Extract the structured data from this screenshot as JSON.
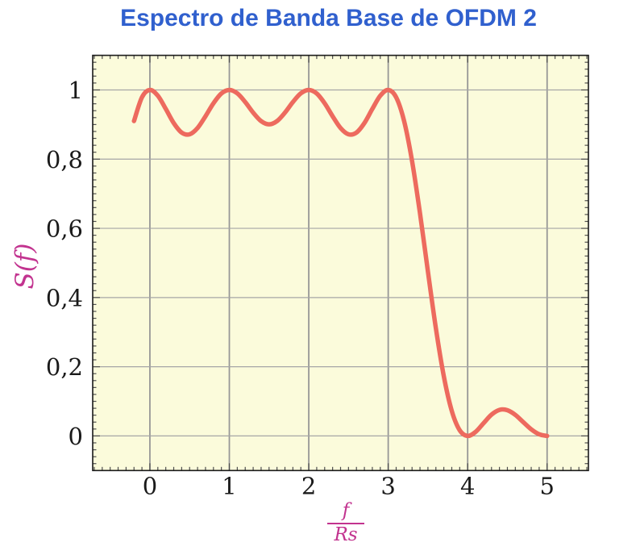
{
  "colors": {
    "title": "#3060CE",
    "axis_label": "#C2338F",
    "curve": "#ED6A5E",
    "plot_background": "#FBFBDB",
    "grid_vertical": "#979797",
    "grid_horizontal": "#A6A6A6",
    "frame": "#1A1A1A",
    "tick": "#4D4D4D",
    "tick_label": "#1A1A1A",
    "page_background": "#FFFFFF"
  },
  "chart_data": {
    "type": "line",
    "title": "Espectro de Banda Base de OFDM 2",
    "ylabel": "S(f)",
    "xlabel": {
      "numerator": "f",
      "denominator": "Rs"
    },
    "xlim": [
      -0.72,
      5.52
    ],
    "ylim": [
      -0.1,
      1.1
    ],
    "x_major_ticks": [
      0,
      1,
      2,
      3,
      4,
      5
    ],
    "x_tick_labels": [
      "0",
      "1",
      "2",
      "3",
      "4",
      "5"
    ],
    "y_major_ticks": [
      0,
      0.2,
      0.4,
      0.6,
      0.8,
      1
    ],
    "y_tick_labels": [
      "0",
      "0,2",
      "0,4",
      "0,6",
      "0,8",
      "1"
    ],
    "x_minor_step": 0.1,
    "y_minor_step": 0.02,
    "grid": "major",
    "legend": "none",
    "series": [
      {
        "name": "S(f)",
        "color": "#ED6A5E",
        "x": [
          -0.2,
          -0.1,
          0,
          0.1,
          0.2,
          0.3,
          0.4,
          0.5,
          0.6,
          0.7,
          0.8,
          0.9,
          1,
          1.1,
          1.2,
          1.3,
          1.4,
          1.5,
          1.6,
          1.7,
          1.8,
          1.9,
          2,
          2.1,
          2.2,
          2.3,
          2.4,
          2.5,
          2.6,
          2.7,
          2.8,
          2.9,
          3,
          3.1,
          3.2,
          3.3,
          3.4,
          3.5,
          3.6,
          3.7,
          3.8,
          3.9,
          4,
          4.1,
          4.2,
          4.3,
          4.4,
          4.5,
          4.6,
          4.7,
          4.8,
          4.9,
          5
        ],
        "y": [
          0.9101,
          0.9787,
          1,
          0.9833,
          0.9451,
          0.9042,
          0.8767,
          0.8718,
          0.89,
          0.924,
          0.9614,
          0.9897,
          1,
          0.9901,
          0.965,
          0.9344,
          0.9099,
          0.9006,
          0.9099,
          0.9344,
          0.965,
          0.9901,
          1,
          0.9897,
          0.9614,
          0.924,
          0.89,
          0.8718,
          0.8767,
          0.9042,
          0.9451,
          0.9833,
          1,
          0.9787,
          0.9101,
          0.7947,
          0.6434,
          0.4748,
          0.311,
          0.1722,
          0.0724,
          0.0164,
          0,
          0.0118,
          0.0369,
          0.0615,
          0.0753,
          0.0745,
          0.0608,
          0.0399,
          0.0192,
          0.0049,
          0
        ]
      }
    ]
  }
}
